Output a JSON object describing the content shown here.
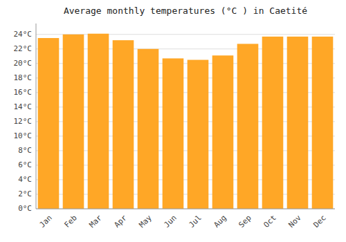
{
  "chart_data": {
    "type": "bar",
    "title": "Average monthly temperatures (°C ) in Caetité",
    "categories": [
      "Jan",
      "Feb",
      "Mar",
      "Apr",
      "May",
      "Jun",
      "Jul",
      "Aug",
      "Sep",
      "Oct",
      "Nov",
      "Dec"
    ],
    "values": [
      23.5,
      24.0,
      24.1,
      23.2,
      22.0,
      20.7,
      20.5,
      21.1,
      22.7,
      23.7,
      23.7,
      23.7
    ],
    "color": "#FFA726",
    "ylim": [
      0,
      25.5
    ],
    "yticks": [
      {
        "value": 0,
        "label": "0°C"
      },
      {
        "value": 2,
        "label": "2°C"
      },
      {
        "value": 4,
        "label": "4°C"
      },
      {
        "value": 6,
        "label": "6°C"
      },
      {
        "value": 8,
        "label": "8°C"
      },
      {
        "value": 10,
        "label": "10°C"
      },
      {
        "value": 12,
        "label": "12°C"
      },
      {
        "value": 14,
        "label": "14°C"
      },
      {
        "value": 16,
        "label": "16°C"
      },
      {
        "value": 18,
        "label": "18°C"
      },
      {
        "value": 20,
        "label": "20°C"
      },
      {
        "value": 22,
        "label": "22°C"
      },
      {
        "value": 24,
        "label": "24°C"
      }
    ],
    "grid": true
  }
}
